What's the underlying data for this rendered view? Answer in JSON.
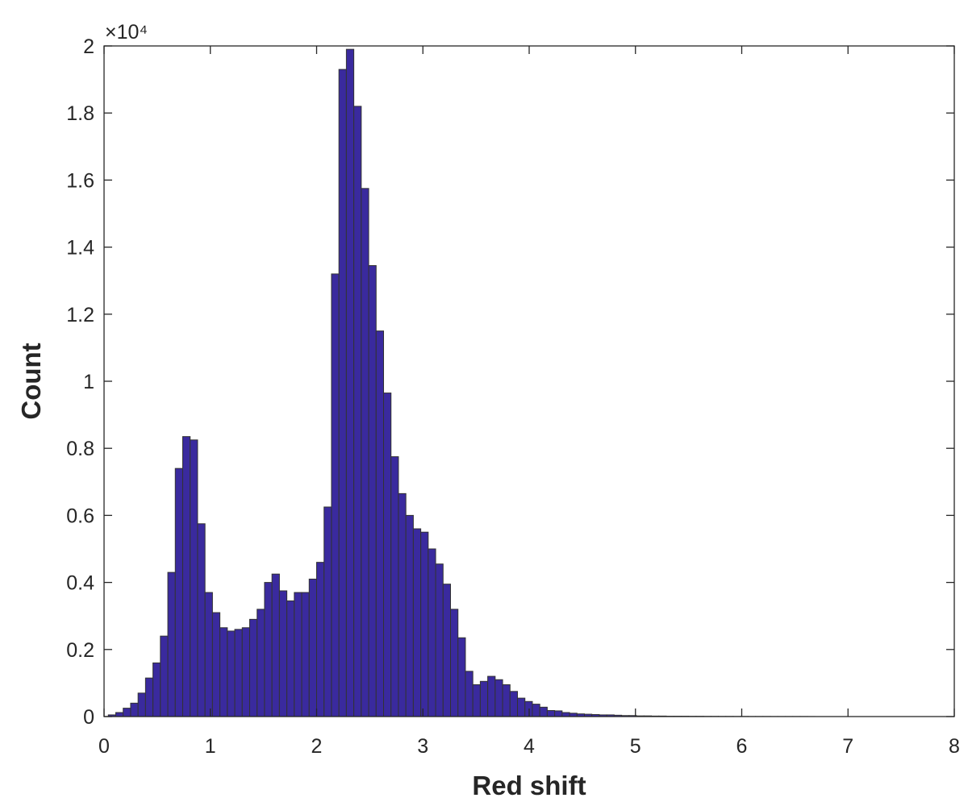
{
  "chart_data": {
    "type": "histogram",
    "xlabel": "Red shift",
    "ylabel": "Count",
    "y_multiplier": "×10⁴",
    "color": "#3a2a9e",
    "edgecolor": "#333333",
    "bins": [
      0.04,
      0.11,
      0.18,
      0.25,
      0.32,
      0.39,
      0.46,
      0.53,
      0.6,
      0.67,
      0.74,
      0.81,
      0.88,
      0.95,
      1.02,
      1.09,
      1.16,
      1.23,
      1.3,
      1.37,
      1.44,
      1.51,
      1.58,
      1.65,
      1.72,
      1.79,
      1.86,
      1.93,
      2,
      2.07,
      2.14,
      2.21,
      2.28,
      2.35,
      2.42,
      2.49,
      2.56,
      2.63,
      2.7,
      2.77,
      2.84,
      2.91,
      2.98,
      3.05,
      3.12,
      3.19,
      3.26,
      3.33,
      3.4,
      3.47,
      3.54,
      3.61,
      3.68,
      3.75,
      3.82,
      3.89,
      3.96,
      4.03,
      4.1,
      4.17,
      4.24,
      4.31,
      4.38,
      4.45,
      4.52,
      4.59,
      4.66,
      4.73,
      4.8,
      4.87,
      4.94,
      5.01,
      5.08,
      5.15,
      5.22,
      5.29,
      5.36,
      5.43,
      5.5,
      5.57,
      5.64,
      5.71,
      5.78,
      5.85,
      5.92,
      5.99,
      6.06,
      6.13,
      6.2,
      6.27,
      6.34,
      6.41,
      6.48,
      6.55,
      6.62,
      6.69
    ],
    "counts": [
      0.005,
      0.012,
      0.025,
      0.04,
      0.07,
      0.115,
      0.16,
      0.24,
      0.43,
      0.74,
      0.835,
      0.825,
      0.575,
      0.37,
      0.31,
      0.265,
      0.255,
      0.26,
      0.265,
      0.29,
      0.32,
      0.4,
      0.425,
      0.375,
      0.345,
      0.37,
      0.37,
      0.41,
      0.46,
      0.625,
      1.32,
      1.93,
      1.99,
      1.82,
      1.575,
      1.345,
      1.15,
      0.965,
      0.775,
      0.665,
      0.6,
      0.56,
      0.55,
      0.5,
      0.455,
      0.395,
      0.32,
      0.235,
      0.135,
      0.095,
      0.105,
      0.12,
      0.11,
      0.095,
      0.075,
      0.055,
      0.045,
      0.037,
      0.028,
      0.018,
      0.017,
      0.012,
      0.01,
      0.008,
      0.007,
      0.006,
      0.005,
      0.005,
      0.004,
      0.003,
      0.003,
      0.002,
      0.002,
      0.0015,
      0.0015,
      0.001,
      0.001,
      0.001,
      0.0008,
      0.0008,
      0.0006,
      0.0006,
      0.0005,
      0.0005,
      0.0004,
      0.0004,
      0.0003,
      0.0003,
      0.0003,
      0.0002,
      0.0002,
      0.0002,
      0.0002,
      0.0002,
      0.0001
    ],
    "xlim": [
      0,
      8
    ],
    "ylim": [
      0,
      2
    ],
    "xticks": [
      0,
      1,
      2,
      3,
      4,
      5,
      6,
      7,
      8
    ],
    "yticks": [
      0,
      0.2,
      0.4,
      0.6,
      0.8,
      1,
      1.2,
      1.4,
      1.6,
      1.8,
      2
    ],
    "box": true
  }
}
